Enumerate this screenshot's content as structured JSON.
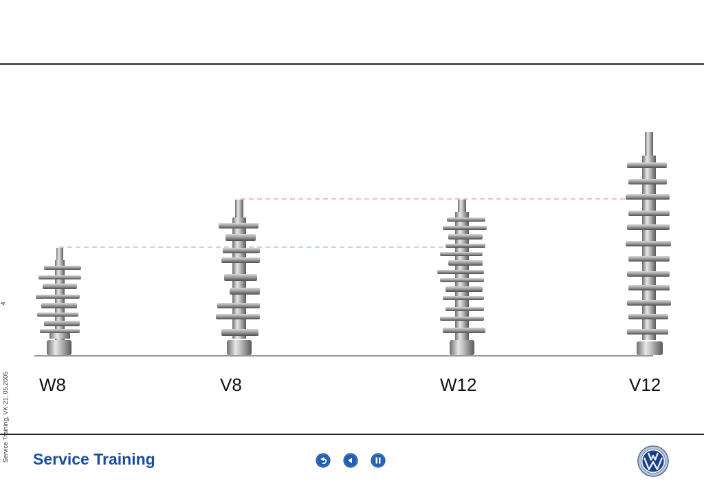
{
  "side_note": "Service Training, VK-21, 05.2005",
  "page_number": "4",
  "engines": [
    {
      "label": "W8"
    },
    {
      "label": "V8"
    },
    {
      "label": "W12"
    },
    {
      "label": "V12"
    }
  ],
  "footer": {
    "brand": "Service Training"
  },
  "nav": {
    "buttons": [
      {
        "icon": "return-icon"
      },
      {
        "icon": "back-icon"
      },
      {
        "icon": "pause-icon"
      }
    ]
  },
  "colors": {
    "brand_blue": "#1a4e9c",
    "guide_green": "#a9d4a9",
    "guide_red": "#f0a8a0"
  }
}
